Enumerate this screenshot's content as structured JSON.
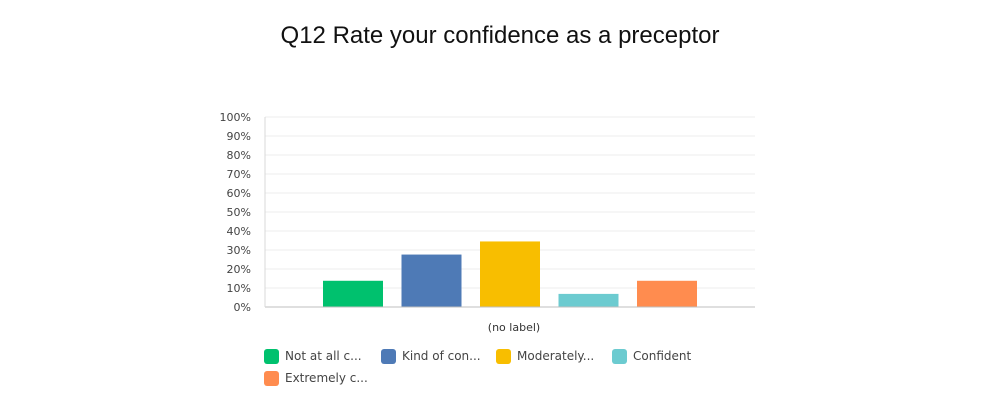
{
  "chart_data": {
    "type": "bar",
    "title": "Q12 Rate your confidence as a preceptor",
    "xlabel": "(no label)",
    "ylabel": "",
    "ylim": [
      0,
      100
    ],
    "yticks": [
      "0%",
      "10%",
      "20%",
      "30%",
      "40%",
      "50%",
      "60%",
      "70%",
      "80%",
      "90%",
      "100%"
    ],
    "grid": true,
    "legend_position": "bottom-left",
    "categories": [
      "(no label)"
    ],
    "series": [
      {
        "name": "Not at all c...",
        "values": [
          13.8
        ],
        "color": "#00c16e"
      },
      {
        "name": "Kind of con...",
        "values": [
          27.6
        ],
        "color": "#4e7ab6"
      },
      {
        "name": "Moderately...",
        "values": [
          34.5
        ],
        "color": "#f8be00"
      },
      {
        "name": "Confident",
        "values": [
          6.9
        ],
        "color": "#6ccbd0"
      },
      {
        "name": "Extremely c...",
        "values": [
          13.8
        ],
        "color": "#ff8c4f"
      }
    ]
  }
}
